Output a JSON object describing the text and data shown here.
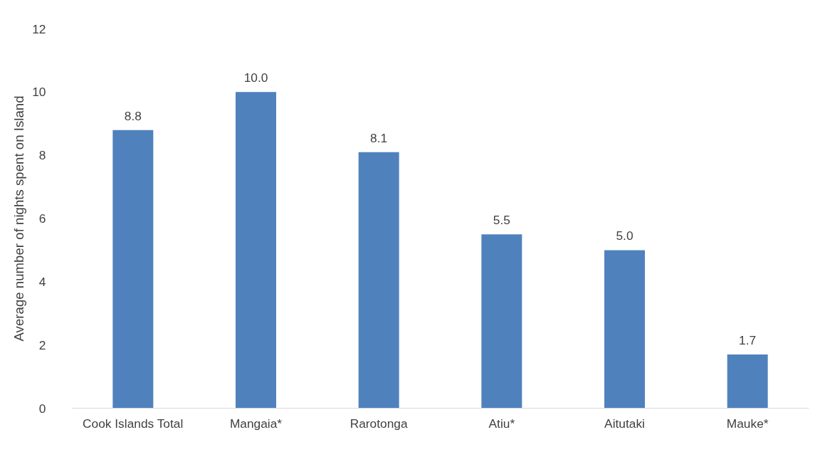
{
  "chart_data": {
    "type": "bar",
    "ylabel": "Average number of nights spent on Island",
    "categories": [
      "Cook Islands Total",
      "Mangaia*",
      "Rarotonga",
      "Atiu*",
      "Aitutaki",
      "Mauke*"
    ],
    "values": [
      8.8,
      10.0,
      8.1,
      5.5,
      5.0,
      1.7
    ],
    "value_labels": [
      "8.8",
      "10.0",
      "8.1",
      "5.5",
      "5.0",
      "1.7"
    ],
    "color": "#4f81bd",
    "ylim": [
      0,
      12
    ],
    "yticks": [
      0,
      2,
      4,
      6,
      8,
      10,
      12
    ],
    "grid": false
  }
}
